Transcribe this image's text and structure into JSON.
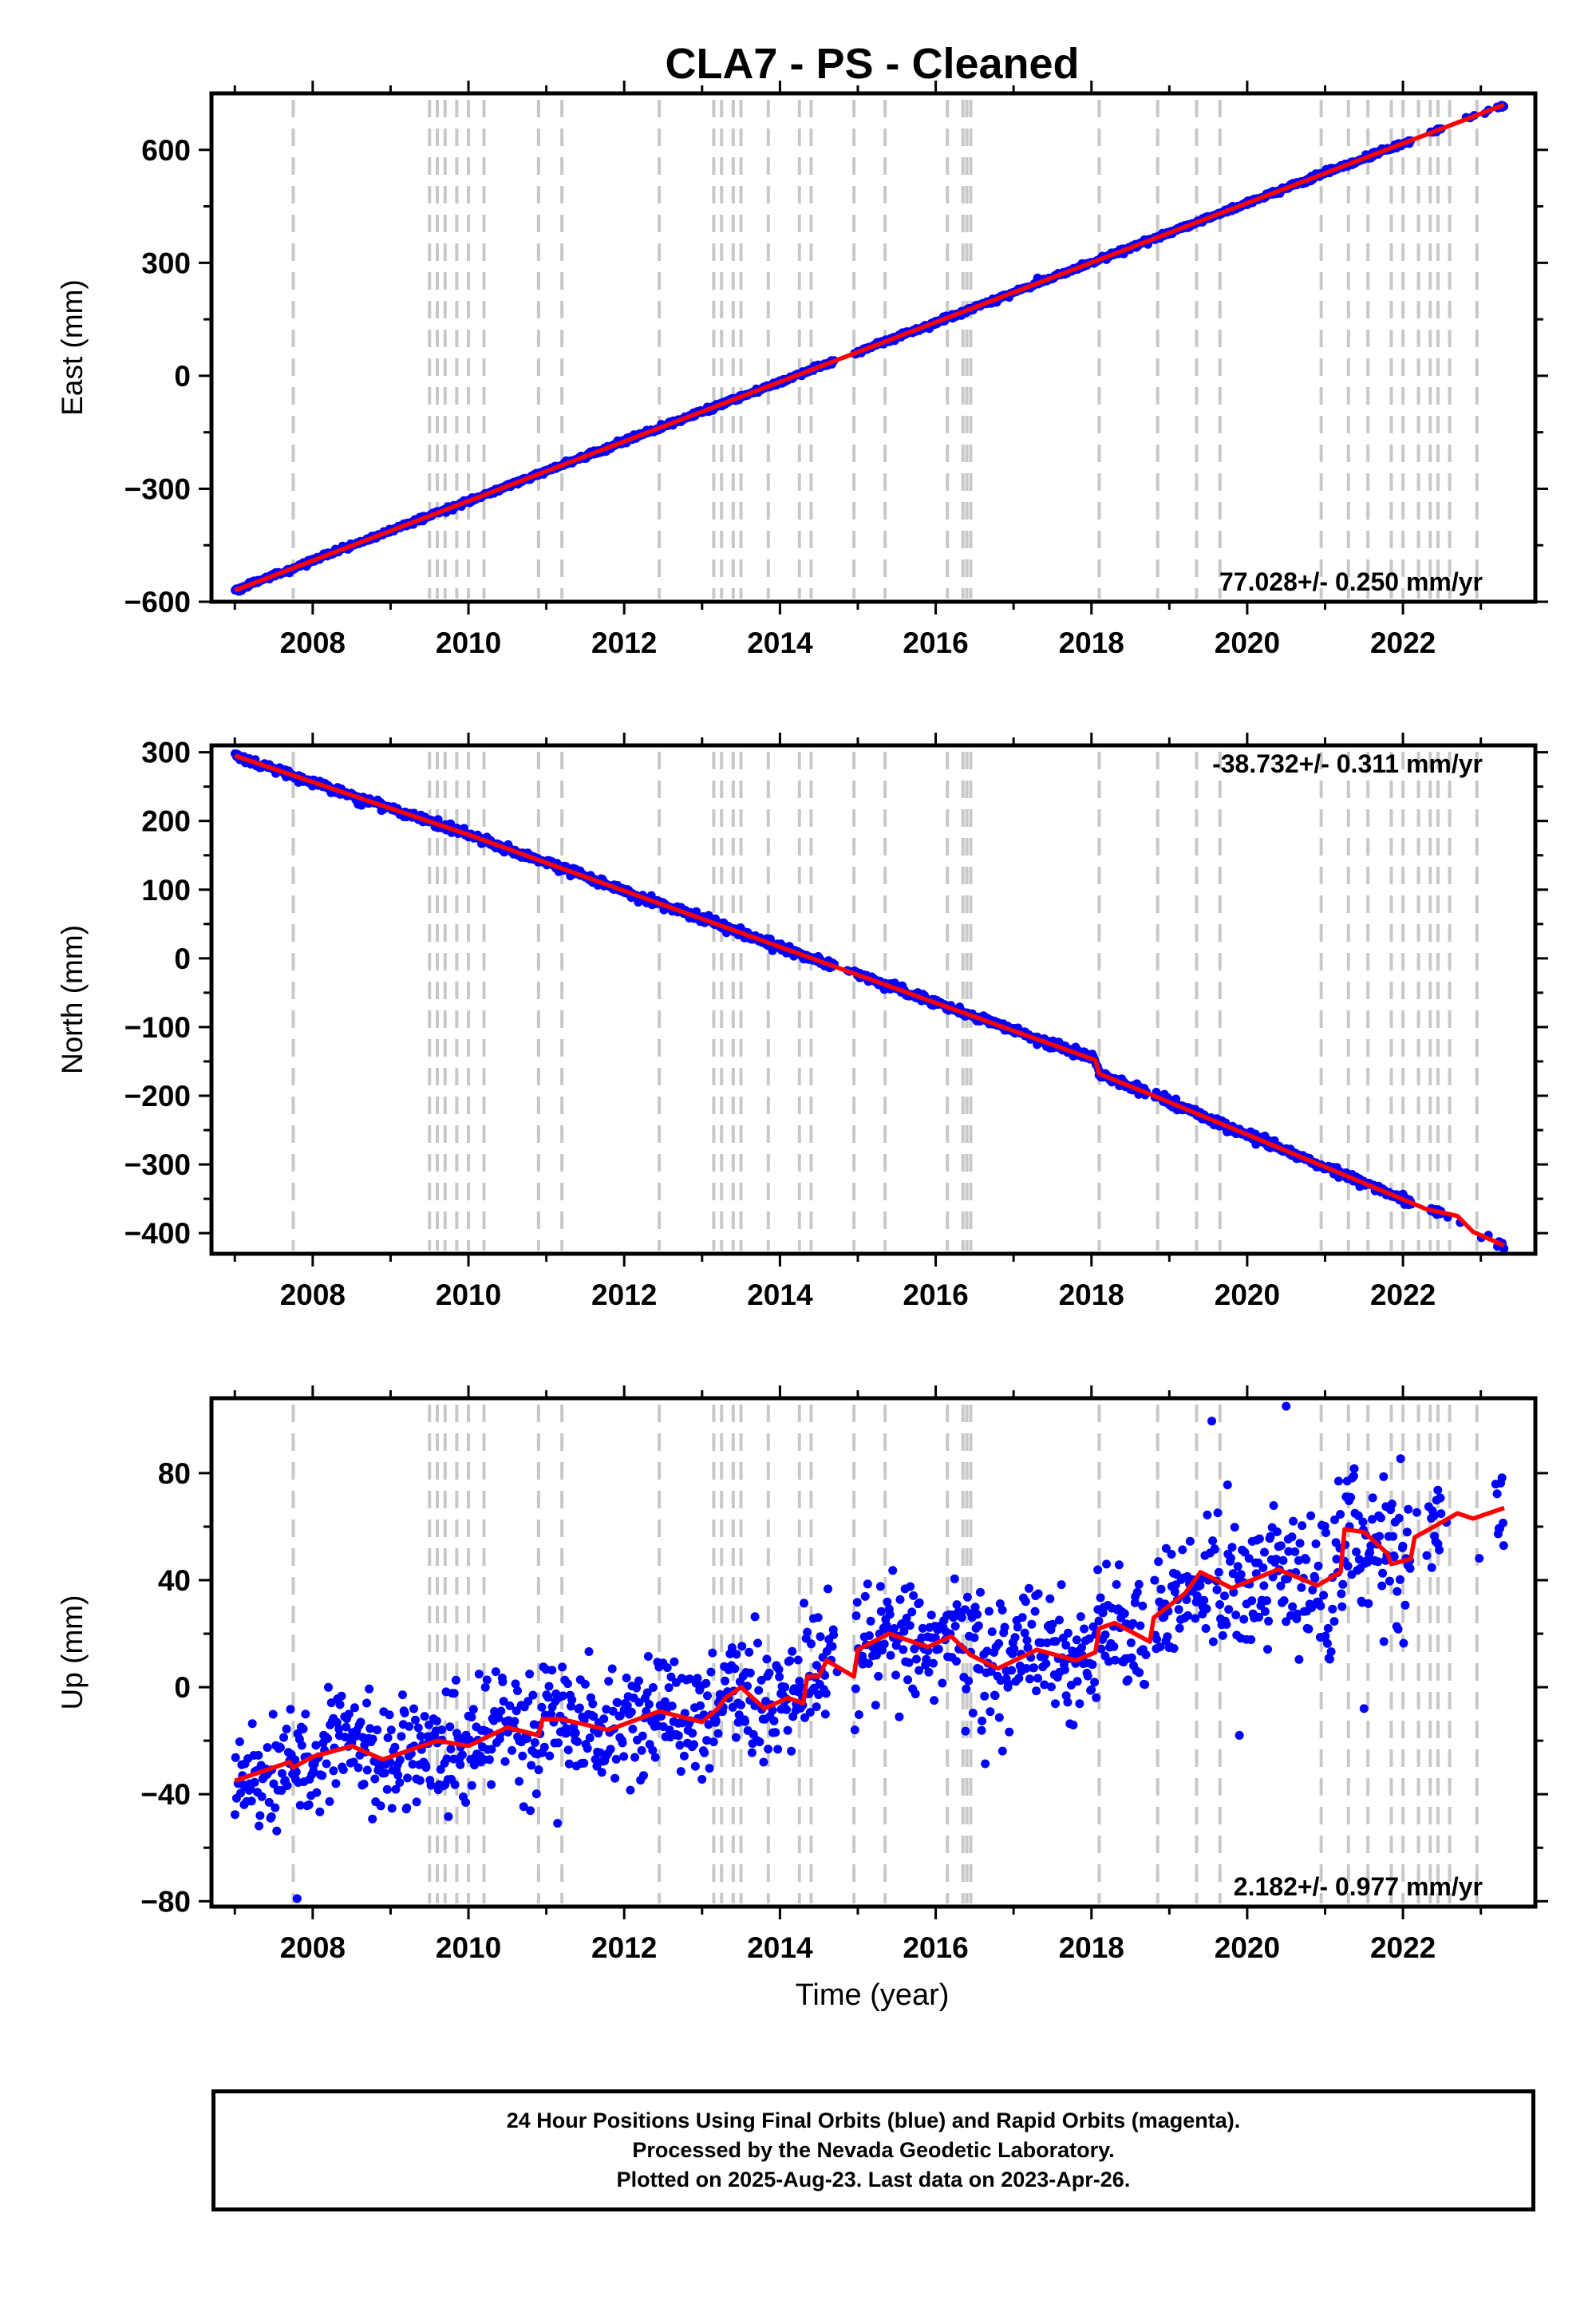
{
  "title": "CLA7  - PS - Cleaned",
  "xlabel": "Time (year)",
  "footer": {
    "line1": "24 Hour Positions Using Final Orbits (blue) and Rapid Orbits (magenta).",
    "line2": "Processed by the Nevada Geodetic Laboratory.",
    "line3": "Plotted on 2025-Aug-23. Last data on 2023-Apr-26."
  },
  "colors": {
    "points": "#0000ff",
    "model": "#ff0000",
    "steps": "#c8c8c8",
    "frame": "#000000"
  },
  "chart_data": [
    {
      "type": "scatter",
      "panel": "east",
      "ylabel": "East (mm)",
      "rate_label": "77.028+/- 0.250 mm/yr",
      "xlim": [
        2006.7,
        2023.7
      ],
      "ylim": [
        -600,
        750
      ],
      "xticks": [
        2008,
        2010,
        2012,
        2014,
        2016,
        2018,
        2020,
        2022
      ],
      "yticks": [
        600,
        300,
        0,
        -300,
        -600
      ],
      "ytick_labels": [
        "600",
        "300",
        "0",
        "−300",
        "−600"
      ],
      "model": {
        "x": [
          2007.0,
          2023.3
        ],
        "y": [
          -570,
          720
        ]
      },
      "scatter_noise": 3,
      "gaps": [
        [
          2014.7,
          2014.95
        ],
        [
          2018.7,
          2018.8
        ],
        [
          2022.1,
          2022.35
        ],
        [
          2022.5,
          2023.2
        ]
      ]
    },
    {
      "type": "scatter",
      "panel": "north",
      "ylabel": "North (mm)",
      "rate_label": "-38.732+/- 0.311 mm/yr",
      "xlim": [
        2006.7,
        2023.7
      ],
      "ylim": [
        -430,
        310
      ],
      "xticks": [
        2008,
        2010,
        2012,
        2014,
        2016,
        2018,
        2020,
        2022
      ],
      "yticks": [
        300,
        200,
        100,
        0,
        -100,
        -200,
        -300,
        -400
      ],
      "ytick_labels": [
        "300",
        "200",
        "100",
        "0",
        "−100",
        "−200",
        "−300",
        "−400"
      ],
      "model": {
        "x": [
          2007.0,
          2010.0,
          2014.9,
          2018.05,
          2018.1,
          2018.8,
          2022.3,
          2022.7,
          2022.9,
          2023.3
        ],
        "y": [
          295,
          180,
          -20,
          -148,
          -168,
          -200,
          -365,
          -375,
          -398,
          -418
        ]
      },
      "scatter_noise": 3,
      "gaps": [
        [
          2014.7,
          2014.95
        ],
        [
          2018.7,
          2018.8
        ],
        [
          2022.1,
          2022.35
        ],
        [
          2022.5,
          2023.2
        ]
      ]
    },
    {
      "type": "scatter",
      "panel": "up",
      "ylabel": "Up (mm)",
      "rate_label": "2.182+/- 0.977 mm/yr",
      "xlim": [
        2006.7,
        2023.7
      ],
      "ylim": [
        -82,
        108
      ],
      "xticks": [
        2008,
        2010,
        2012,
        2014,
        2016,
        2018,
        2020,
        2022
      ],
      "yticks": [
        80,
        40,
        0,
        -40,
        -80
      ],
      "ytick_labels": [
        "80",
        "40",
        "0",
        "−40",
        "−80"
      ],
      "model": {
        "x": [
          2007.0,
          2007.3,
          2007.7,
          2007.75,
          2008.0,
          2008.5,
          2008.9,
          2009.3,
          2009.6,
          2010.0,
          2010.5,
          2010.9,
          2010.95,
          2011.2,
          2011.8,
          2012.45,
          2013.0,
          2013.2,
          2013.3,
          2013.5,
          2013.8,
          2014.1,
          2014.3,
          2014.35,
          2014.5,
          2014.6,
          2014.95,
          2015.0,
          2015.4,
          2015.9,
          2016.2,
          2016.45,
          2016.8,
          2017.3,
          2017.8,
          2018.05,
          2018.1,
          2018.3,
          2018.75,
          2018.8,
          2019.2,
          2019.4,
          2019.8,
          2020.4,
          2020.9,
          2021.2,
          2021.25,
          2021.5,
          2021.8,
          2021.85,
          2022.1,
          2022.15,
          2022.4,
          2022.7,
          2022.9,
          2023.3
        ],
        "y": [
          -35,
          -32,
          -28,
          -30,
          -26,
          -22,
          -27,
          -23,
          -20,
          -22,
          -15,
          -18,
          -12,
          -12,
          -16,
          -9,
          -13,
          -8,
          -4,
          0,
          -8,
          -4,
          -6,
          4,
          4,
          10,
          4,
          14,
          20,
          15,
          19,
          12,
          7,
          14,
          10,
          13,
          22,
          24,
          17,
          26,
          35,
          43,
          37,
          44,
          38,
          43,
          59,
          58,
          50,
          46,
          48,
          56,
          60,
          65,
          63,
          67
        ]
      },
      "scatter_noise": 11,
      "gaps": [
        [
          2014.7,
          2014.95
        ],
        [
          2018.7,
          2018.8
        ],
        [
          2022.1,
          2022.35
        ],
        [
          2022.5,
          2023.2
        ]
      ]
    }
  ],
  "step_lines": [
    2007.75,
    2009.5,
    2009.6,
    2009.7,
    2009.85,
    2010.0,
    2010.2,
    2010.9,
    2011.2,
    2012.45,
    2013.15,
    2013.25,
    2013.4,
    2013.5,
    2013.85,
    2014.25,
    2014.4,
    2014.95,
    2015.35,
    2016.15,
    2016.35,
    2016.4,
    2016.45,
    2018.1,
    2018.85,
    2019.35,
    2019.65,
    2020.95,
    2021.3,
    2021.55,
    2021.85,
    2022.0,
    2022.2,
    2022.35,
    2022.45,
    2022.6,
    2022.95
  ]
}
